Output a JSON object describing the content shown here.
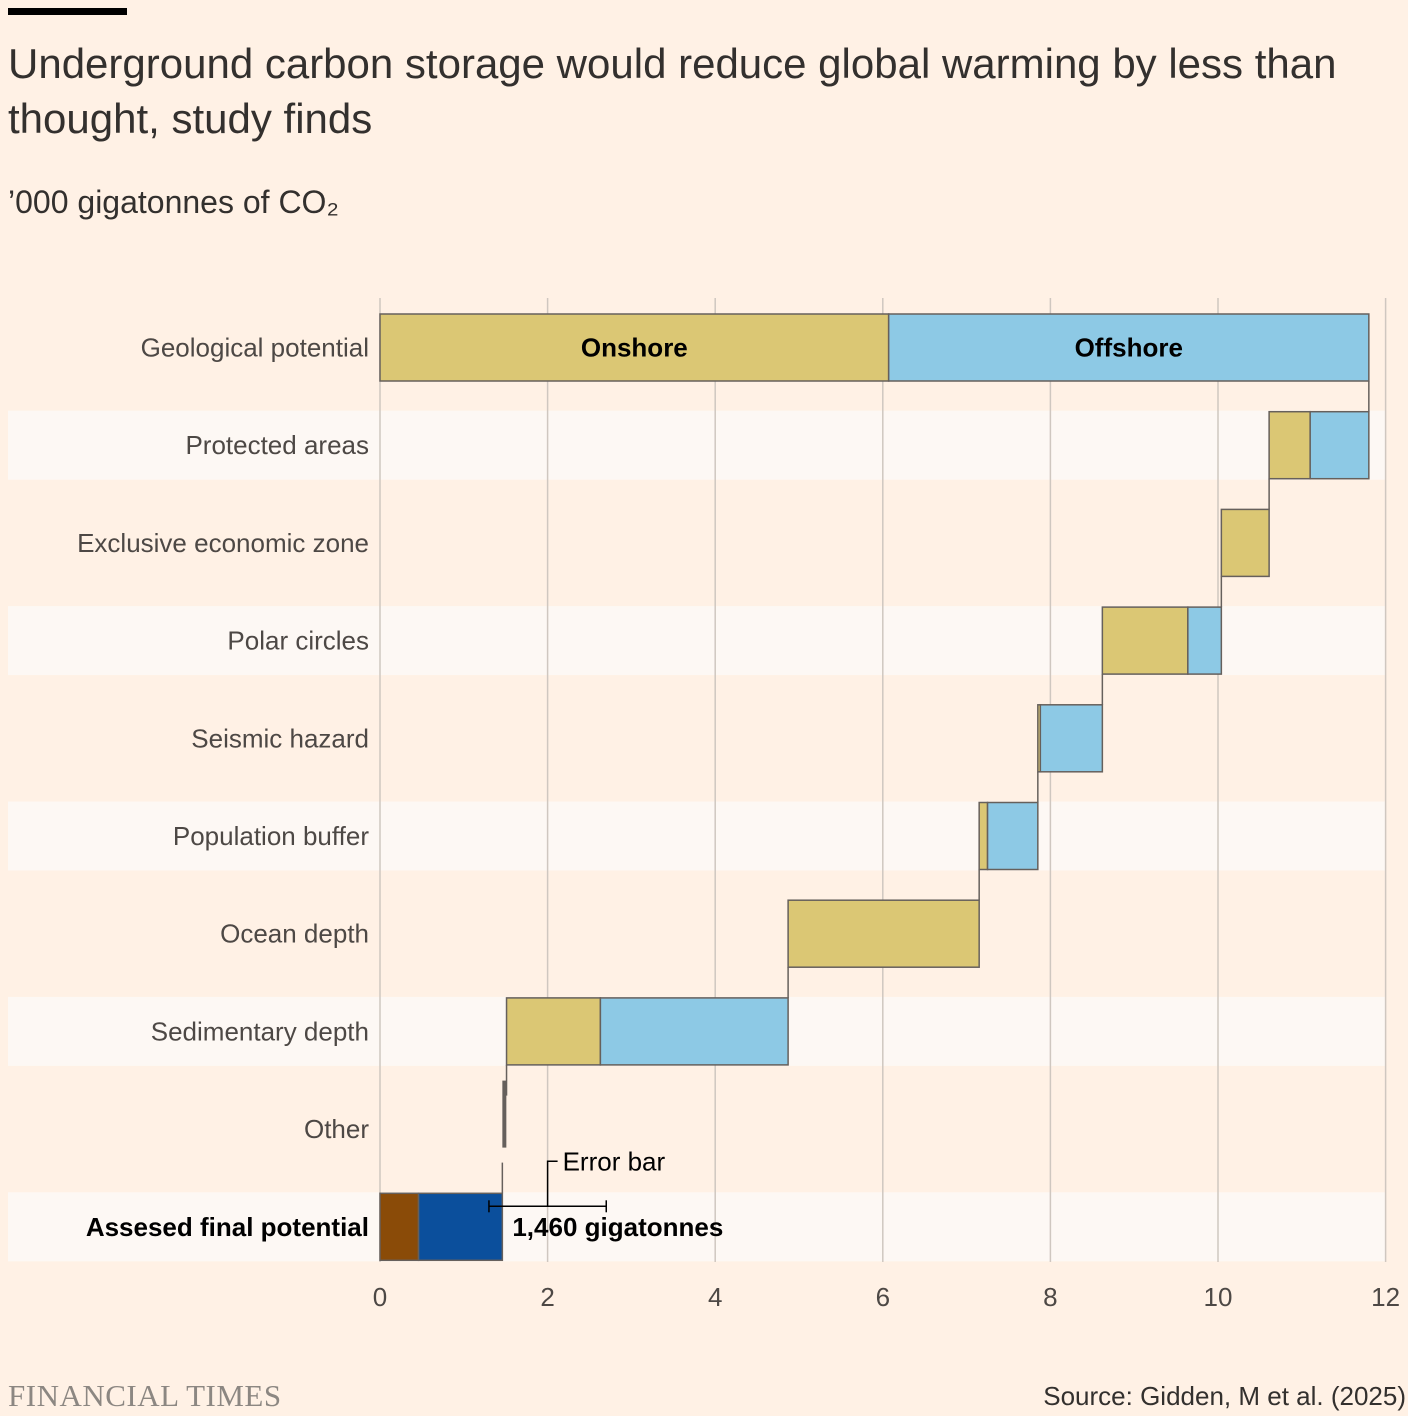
{
  "title": "Underground carbon storage would reduce global warming by less than thought, study finds",
  "subtitle": "’000 gigatonnes of CO₂",
  "source": "Source: Gidden, M et al. (2025)",
  "logo": "FINANCIAL TIMES",
  "chart_data": {
    "type": "bar",
    "subtype": "waterfall",
    "title": "Underground carbon storage would reduce global warming by less than thought, study finds",
    "ylabel": "’000 gigatonnes of CO₂",
    "xlim": [
      0,
      12
    ],
    "xticks": [
      0,
      2,
      4,
      6,
      8,
      10,
      12
    ],
    "grid": true,
    "colors": {
      "onshore": "#dbc774",
      "offshore": "#8dc9e5",
      "final_onshore": "#8a4b08",
      "final_offshore": "#0b4f9c",
      "stroke": "#66605c",
      "band": "#fdf8f4",
      "grid": "#cfc7c0"
    },
    "rows": [
      {
        "label": "Geological potential",
        "start": 0,
        "segments": [
          {
            "name": "Onshore",
            "value": 6.07,
            "label": "Onshore"
          },
          {
            "name": "Offshore",
            "value": 5.73,
            "label": "Offshore"
          }
        ]
      },
      {
        "label": "Protected areas",
        "start": 10.61,
        "segments": [
          {
            "name": "Onshore",
            "value": 0.49
          },
          {
            "name": "Offshore",
            "value": 0.7
          }
        ]
      },
      {
        "label": "Exclusive economic zone",
        "start": 10.04,
        "segments": [
          {
            "name": "Onshore",
            "value": 0.57
          }
        ]
      },
      {
        "label": "Polar circles",
        "start": 8.62,
        "segments": [
          {
            "name": "Onshore",
            "value": 1.02
          },
          {
            "name": "Offshore",
            "value": 0.4
          }
        ]
      },
      {
        "label": "Seismic hazard",
        "start": 7.85,
        "segments": [
          {
            "name": "Onshore",
            "value": 0.03
          },
          {
            "name": "Offshore",
            "value": 0.74
          }
        ]
      },
      {
        "label": "Population buffer",
        "start": 7.15,
        "segments": [
          {
            "name": "Onshore",
            "value": 0.1
          },
          {
            "name": "Offshore",
            "value": 0.6
          }
        ]
      },
      {
        "label": "Ocean depth",
        "start": 4.87,
        "segments": [
          {
            "name": "Onshore",
            "value": 2.28
          }
        ]
      },
      {
        "label": "Sedimentary depth",
        "start": 1.51,
        "segments": [
          {
            "name": "Onshore",
            "value": 1.12
          },
          {
            "name": "Offshore",
            "value": 2.24
          }
        ]
      },
      {
        "label": "Other",
        "start": 1.46,
        "segments": [
          {
            "name": "Other",
            "value": 0.05
          }
        ]
      },
      {
        "label": "Assesed final potential",
        "start": 0,
        "final": true,
        "segments": [
          {
            "name": "Onshore",
            "value": 0.46
          },
          {
            "name": "Offshore",
            "value": 1.0
          }
        ]
      }
    ],
    "final_value_label": "1,460 gigatonnes",
    "error_bar": {
      "label": "Error bar",
      "low": 1.3,
      "high": 2.7
    }
  }
}
